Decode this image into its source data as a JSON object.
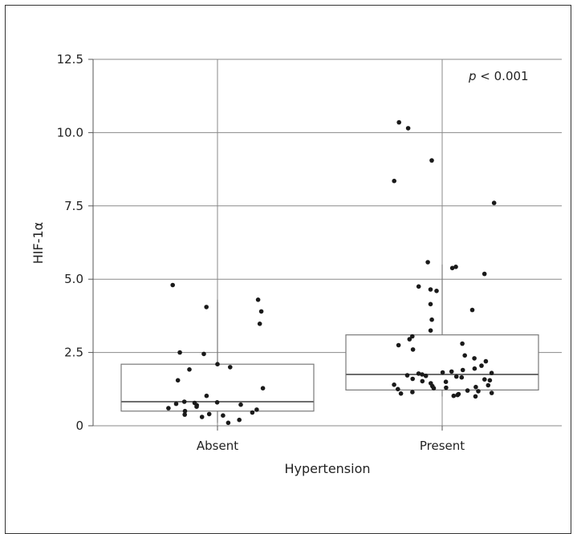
{
  "chart_data": {
    "type": "box",
    "xlabel": "Hypertension",
    "ylabel": "HIF-1α",
    "categories": [
      "Absent",
      "Present"
    ],
    "ylim": [
      0,
      12.5
    ],
    "yticks": [
      "0",
      "2.5",
      "5.0",
      "7.5",
      "10.0",
      "12.5"
    ],
    "grid": true,
    "annotation": {
      "italic": "p",
      "rest": " < 0.001"
    },
    "boxes": [
      {
        "category": "Absent",
        "q1": 0.5,
        "median": 0.82,
        "q3": 2.1,
        "whisker_low": 0.1,
        "whisker_high": 4.3
      },
      {
        "category": "Present",
        "q1": 1.22,
        "median": 1.75,
        "q3": 3.1,
        "whisker_low": 1.0,
        "whisker_high": 5.5
      }
    ],
    "points": [
      {
        "category": "Absent",
        "values": [
          4.3,
          3.9,
          4.8,
          4.05,
          3.48,
          2.5,
          2.45,
          2.1,
          2.0,
          1.92,
          1.55,
          1.28,
          1.02,
          0.82,
          0.8,
          0.78,
          0.75,
          0.72,
          0.7,
          0.65,
          0.6,
          0.55,
          0.5,
          0.45,
          0.4,
          0.38,
          0.35,
          0.3,
          0.2,
          0.1
        ]
      },
      {
        "category": "Present",
        "values": [
          10.35,
          10.15,
          9.05,
          8.35,
          7.6,
          5.58,
          5.42,
          5.38,
          5.18,
          4.75,
          4.65,
          4.6,
          4.15,
          3.95,
          3.62,
          3.25,
          3.05,
          2.95,
          2.8,
          2.75,
          2.6,
          2.4,
          2.3,
          2.2,
          2.05,
          1.95,
          1.9,
          1.85,
          1.82,
          1.8,
          1.78,
          1.75,
          1.72,
          1.7,
          1.68,
          1.65,
          1.6,
          1.58,
          1.55,
          1.52,
          1.5,
          1.45,
          1.4,
          1.38,
          1.35,
          1.32,
          1.3,
          1.28,
          1.25,
          1.2,
          1.18,
          1.15,
          1.12,
          1.1,
          1.08,
          1.05,
          1.02,
          1.0
        ]
      }
    ]
  }
}
